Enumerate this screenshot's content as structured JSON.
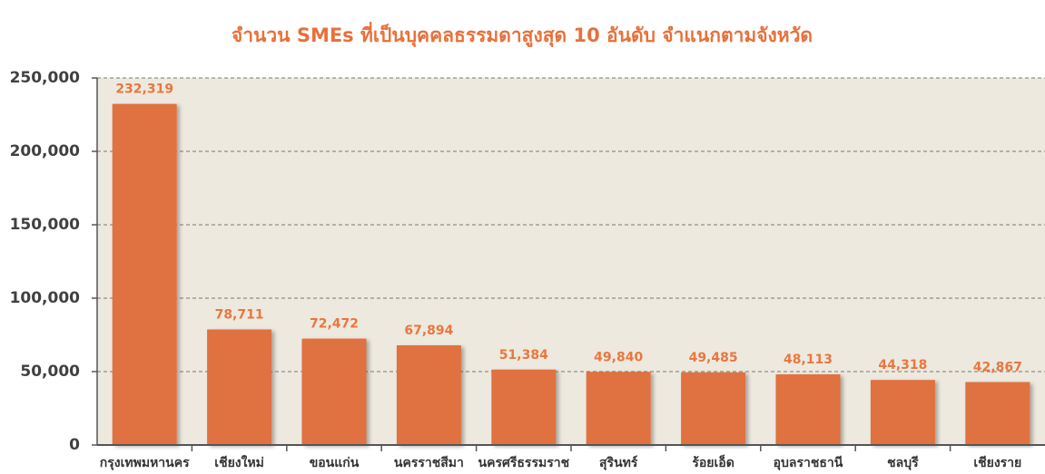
{
  "chart_data": {
    "type": "bar",
    "title": "จำนวน SMEs ที่เป็นบุคคลธรรมดาสูงสุด 10 อันดับ จำแนกตามจังหวัด",
    "categories": [
      "กรุงเทพมหานคร",
      "เชียงใหม่",
      "ขอนแก่น",
      "นครราชสีมา",
      "นครศรีธรรมราช",
      "สุรินทร์",
      "ร้อยเอ็ด",
      "อุบลราชธานี",
      "ชลบุรี",
      "เชียงราย"
    ],
    "values": [
      232319,
      78711,
      72472,
      67894,
      51384,
      49840,
      49485,
      48113,
      44318,
      42867
    ],
    "value_labels": [
      "232,319",
      "78,711",
      "72,472",
      "67,894",
      "51,384",
      "49,840",
      "49,485",
      "48,113",
      "44,318",
      "42,867"
    ],
    "color": "#e07141",
    "ylim": [
      0,
      250000
    ],
    "yticks": [
      0,
      {
        "value": 50000,
        "label": "50,000"
      },
      {
        "value": 100000,
        "label": "100,000"
      },
      {
        "value": 150000,
        "label": "150,000"
      },
      {
        "value": 200000,
        "label": "200,000"
      },
      {
        "value": 250000,
        "label": "250,000"
      }
    ],
    "grid": true
  }
}
